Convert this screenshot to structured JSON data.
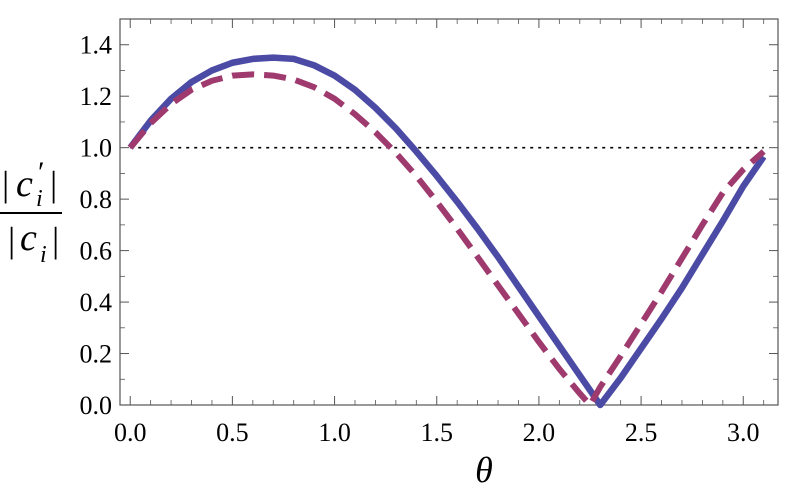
{
  "chart_data": {
    "type": "line",
    "xlabel": "θ",
    "ylabel": {
      "numerator": "|c′i|",
      "denominator": "|ci|",
      "numerator_base": "c",
      "numerator_prime": "′",
      "denominator_base": "c",
      "subscript": "i",
      "bar": "|"
    },
    "xlim": [
      -0.05,
      3.17
    ],
    "ylim": [
      0.0,
      1.5
    ],
    "x_ticks": [
      "0.0",
      "0.5",
      "1.0",
      "1.5",
      "2.0",
      "2.5",
      "3.0"
    ],
    "y_ticks": [
      "0.0",
      "0.2",
      "0.4",
      "0.6",
      "0.8",
      "1.0",
      "1.2",
      "1.4"
    ],
    "reference_line": {
      "y": 1.0,
      "style": "dotted",
      "color": "#000000"
    },
    "series": [
      {
        "style": "solid",
        "color": "#4b4ba6",
        "points": [
          [
            0.0,
            1.0
          ],
          [
            0.1,
            1.105
          ],
          [
            0.2,
            1.19
          ],
          [
            0.3,
            1.255
          ],
          [
            0.4,
            1.3
          ],
          [
            0.5,
            1.33
          ],
          [
            0.6,
            1.345
          ],
          [
            0.7,
            1.35
          ],
          [
            0.8,
            1.345
          ],
          [
            0.9,
            1.32
          ],
          [
            1.0,
            1.28
          ],
          [
            1.1,
            1.225
          ],
          [
            1.2,
            1.155
          ],
          [
            1.3,
            1.075
          ],
          [
            1.4,
            0.985
          ],
          [
            1.5,
            0.89
          ],
          [
            1.6,
            0.79
          ],
          [
            1.7,
            0.685
          ],
          [
            1.8,
            0.575
          ],
          [
            1.9,
            0.46
          ],
          [
            2.0,
            0.345
          ],
          [
            2.1,
            0.23
          ],
          [
            2.2,
            0.115
          ],
          [
            2.3,
            0.0
          ],
          [
            2.4,
            0.105
          ],
          [
            2.5,
            0.22
          ],
          [
            2.6,
            0.335
          ],
          [
            2.7,
            0.455
          ],
          [
            2.8,
            0.585
          ],
          [
            2.9,
            0.715
          ],
          [
            3.0,
            0.85
          ],
          [
            3.1,
            0.965
          ]
        ]
      },
      {
        "style": "dashed",
        "color": "#9e3a6e",
        "points": [
          [
            0.0,
            1.0
          ],
          [
            0.1,
            1.095
          ],
          [
            0.2,
            1.17
          ],
          [
            0.3,
            1.225
          ],
          [
            0.4,
            1.26
          ],
          [
            0.5,
            1.28
          ],
          [
            0.6,
            1.285
          ],
          [
            0.7,
            1.28
          ],
          [
            0.8,
            1.265
          ],
          [
            0.9,
            1.235
          ],
          [
            1.0,
            1.19
          ],
          [
            1.1,
            1.13
          ],
          [
            1.2,
            1.06
          ],
          [
            1.3,
            0.98
          ],
          [
            1.4,
            0.89
          ],
          [
            1.5,
            0.79
          ],
          [
            1.6,
            0.685
          ],
          [
            1.7,
            0.575
          ],
          [
            1.8,
            0.465
          ],
          [
            1.9,
            0.355
          ],
          [
            2.0,
            0.245
          ],
          [
            2.1,
            0.14
          ],
          [
            2.2,
            0.045
          ],
          [
            2.25,
            0.0
          ],
          [
            2.3,
            0.07
          ],
          [
            2.4,
            0.19
          ],
          [
            2.5,
            0.315
          ],
          [
            2.6,
            0.44
          ],
          [
            2.7,
            0.57
          ],
          [
            2.8,
            0.7
          ],
          [
            2.9,
            0.825
          ],
          [
            3.0,
            0.915
          ],
          [
            3.1,
            0.985
          ]
        ]
      }
    ],
    "grid": false
  }
}
